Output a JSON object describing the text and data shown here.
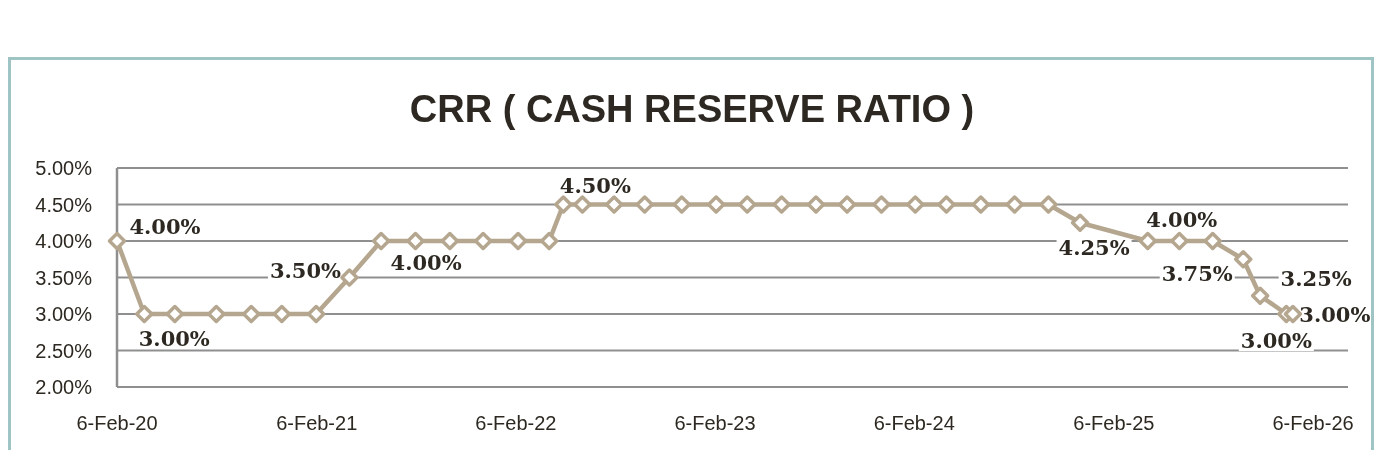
{
  "chart_data": {
    "type": "line",
    "title": "CRR ( CASH RESERVE RATIO )",
    "x": [
      "2020-02-06",
      "2020-03-27",
      "2020-05-22",
      "2020-08-06",
      "2020-10-09",
      "2020-12-04",
      "2021-02-05",
      "2021-04-07",
      "2021-06-04",
      "2021-08-06",
      "2021-10-08",
      "2021-12-08",
      "2022-02-10",
      "2022-04-08",
      "2022-05-04",
      "2022-06-08",
      "2022-08-05",
      "2022-09-30",
      "2022-12-07",
      "2023-02-08",
      "2023-04-06",
      "2023-06-08",
      "2023-08-10",
      "2023-10-06",
      "2023-12-08",
      "2024-02-08",
      "2024-04-05",
      "2024-06-07",
      "2024-08-08",
      "2024-10-09",
      "2024-12-06",
      "2025-04-09",
      "2025-06-06",
      "2025-08-06",
      "2025-10-01",
      "2025-11-01",
      "2025-12-19",
      "2025-12-31"
    ],
    "series": [
      {
        "color": "#b5a68f",
        "values": [
          4.0,
          3.0,
          3.0,
          3.0,
          3.0,
          3.0,
          3.0,
          3.5,
          4.0,
          4.0,
          4.0,
          4.0,
          4.0,
          4.0,
          4.5,
          4.5,
          4.5,
          4.5,
          4.5,
          4.5,
          4.5,
          4.5,
          4.5,
          4.5,
          4.5,
          4.5,
          4.5,
          4.5,
          4.5,
          4.5,
          4.25,
          4.0,
          4.0,
          4.0,
          3.75,
          3.25,
          3.0,
          3.0
        ],
        "value_labels": [
          "4.00%",
          "3.00%",
          null,
          null,
          null,
          null,
          null,
          "3.50%",
          "4.00%",
          null,
          null,
          null,
          null,
          null,
          "4.50%",
          null,
          null,
          null,
          null,
          null,
          null,
          null,
          null,
          null,
          null,
          null,
          null,
          null,
          null,
          null,
          "4.25%",
          "4.00%",
          null,
          null,
          "3.75%",
          "3.25%",
          "3.00%",
          "3.00%"
        ]
      }
    ],
    "xlim": [
      "2020-02-06",
      "2026-04-11"
    ],
    "xticks": [
      {
        "value": "2020-02-06",
        "label": "6-Feb-20"
      },
      {
        "value": "2021-02-06",
        "label": "6-Feb-21"
      },
      {
        "value": "2022-02-06",
        "label": "6-Feb-22"
      },
      {
        "value": "2023-02-06",
        "label": "6-Feb-23"
      },
      {
        "value": "2024-02-06",
        "label": "6-Feb-24"
      },
      {
        "value": "2025-02-06",
        "label": "6-Feb-25"
      },
      {
        "value": "2026-02-06",
        "label": "6-Feb-26"
      }
    ],
    "ylim": [
      2,
      5
    ],
    "yticks": [
      {
        "value": 2,
        "label": "2.00%"
      },
      {
        "value": 2.5,
        "label": "2.50%"
      },
      {
        "value": 3,
        "label": "3.00%"
      },
      {
        "value": 3.5,
        "label": "3.50%"
      },
      {
        "value": 4,
        "label": "4.00%"
      },
      {
        "value": 4.5,
        "label": "4.50%"
      },
      {
        "value": 5,
        "label": "5.00%"
      }
    ],
    "grid": "y",
    "marker": "diamond",
    "line_style": "solid"
  }
}
